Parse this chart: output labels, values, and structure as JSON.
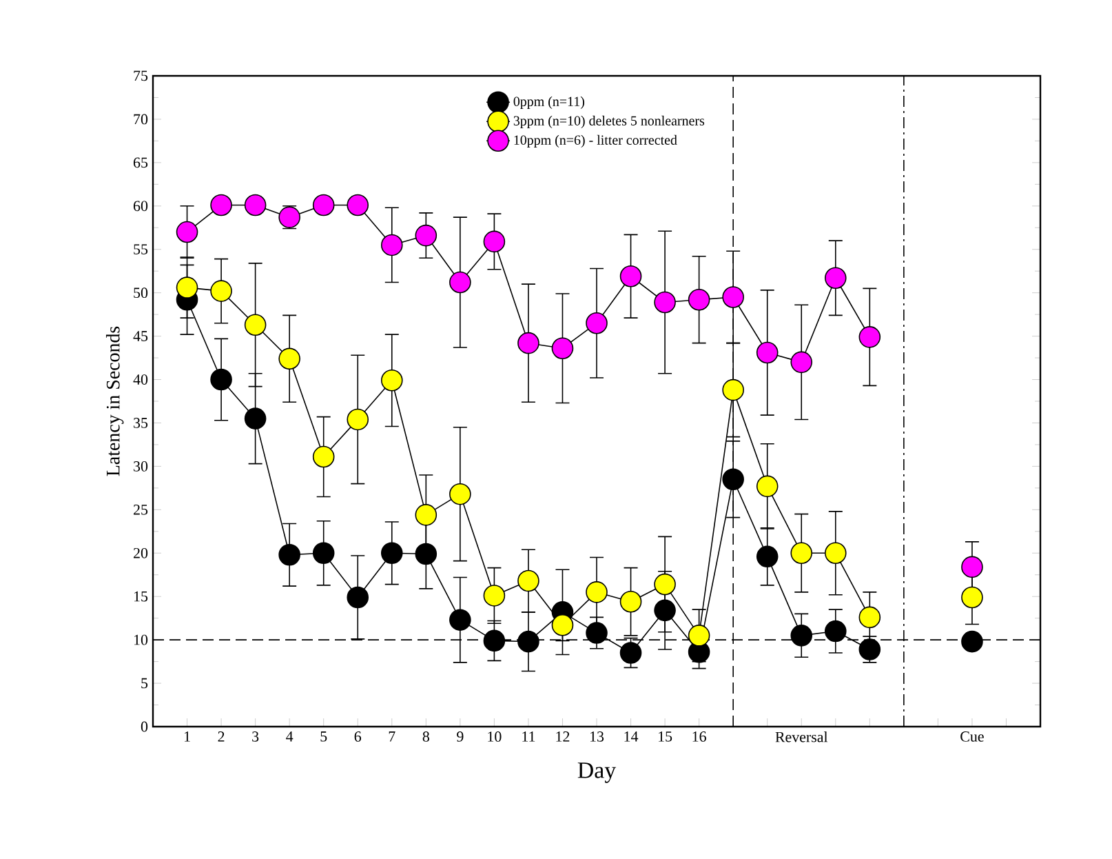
{
  "chart_data": {
    "type": "line",
    "xlabel": "Day",
    "ylabel": "Latency in Seconds",
    "xlim": [
      0,
      26
    ],
    "ylim": [
      0,
      75
    ],
    "xticks": [
      1,
      2,
      3,
      4,
      5,
      6,
      7,
      8,
      9,
      10,
      11,
      12,
      13,
      14,
      15,
      16,
      {
        "value": 17,
        "label": null
      },
      {
        "value": 18,
        "label": null
      },
      {
        "value": 19,
        "label": "Reversal"
      },
      {
        "value": 20,
        "label": null
      },
      {
        "value": 21,
        "label": null
      },
      {
        "value": 22,
        "label": null
      },
      {
        "value": 23,
        "label": null
      },
      {
        "value": 24,
        "label": "Cue"
      },
      {
        "value": 25,
        "label": null
      }
    ],
    "yticks": [
      0,
      5,
      10,
      15,
      20,
      25,
      30,
      35,
      40,
      45,
      50,
      55,
      60,
      65,
      70,
      75
    ],
    "marker": "circle",
    "line_style": "solid",
    "legend": "top",
    "grid": false,
    "ref_lines": [
      {
        "axis": "y",
        "value": 10,
        "line_style": "dashed"
      },
      {
        "axis": "x",
        "value": 17,
        "line_style": "dashed"
      },
      {
        "axis": "x",
        "value": 22,
        "line_style": "dashdot"
      }
    ],
    "series": [
      {
        "name": "0ppm (n=11)",
        "color": "#000000",
        "x": [
          1,
          2,
          3,
          4,
          5,
          6,
          7,
          8,
          9,
          10,
          11,
          12,
          13,
          14,
          15,
          16,
          17,
          18,
          19,
          20,
          21,
          22,
          24
        ],
        "values": [
          49.2,
          40.0,
          35.5,
          19.8,
          20.0,
          14.9,
          20.0,
          19.9,
          12.3,
          9.9,
          9.8,
          13.2,
          10.8,
          8.5,
          13.4,
          8.6,
          28.5,
          19.6,
          10.5,
          11.0,
          8.9,
          null,
          9.8
        ],
        "errors": [
          4,
          4.7,
          5.2,
          3.6,
          3.7,
          4.8,
          3.6,
          4,
          4.9,
          2.3,
          3.4,
          4.9,
          1.8,
          1.7,
          4.5,
          1.9,
          4.4,
          3.3,
          2.5,
          2.5,
          1.5,
          null,
          null
        ]
      },
      {
        "name": "3ppm (n=10) deletes 5 nonlearners",
        "color": "#ffff00",
        "x": [
          1,
          2,
          3,
          4,
          5,
          6,
          7,
          8,
          9,
          10,
          11,
          12,
          13,
          14,
          15,
          16,
          17,
          18,
          19,
          20,
          21,
          22,
          24
        ],
        "values": [
          50.6,
          50.2,
          46.3,
          42.4,
          31.1,
          35.4,
          39.9,
          24.4,
          26.8,
          15.1,
          16.8,
          11.7,
          15.5,
          14.4,
          16.4,
          10.5,
          38.8,
          27.7,
          20.0,
          20.0,
          12.6,
          null,
          14.9
        ],
        "errors": [
          3.5,
          3.7,
          7.1,
          5,
          4.6,
          7.4,
          5.3,
          4.6,
          7.7,
          3.2,
          3.6,
          1.8,
          4,
          3.9,
          5.5,
          3,
          5.4,
          4.9,
          4.5,
          4.8,
          2.9,
          null,
          3.1
        ]
      },
      {
        "name": "10ppm (n=6) - litter corrected",
        "color": "#ff00ff",
        "x": [
          1,
          2,
          3,
          4,
          5,
          6,
          7,
          8,
          9,
          10,
          11,
          12,
          13,
          14,
          15,
          16,
          17,
          18,
          19,
          20,
          21,
          22,
          24
        ],
        "values": [
          57.0,
          60.1,
          60.1,
          58.7,
          60.1,
          60.1,
          55.5,
          56.6,
          51.2,
          55.9,
          44.2,
          43.6,
          46.5,
          51.9,
          48.9,
          49.2,
          49.5,
          43.1,
          42.0,
          51.7,
          44.9,
          null,
          18.4
        ],
        "errors": [
          3,
          null,
          null,
          1.3,
          null,
          null,
          4.3,
          2.6,
          7.5,
          3.2,
          6.8,
          6.3,
          6.3,
          4.8,
          8.2,
          5,
          5.3,
          7.2,
          6.6,
          4.3,
          5.6,
          null,
          2.9
        ]
      }
    ]
  }
}
